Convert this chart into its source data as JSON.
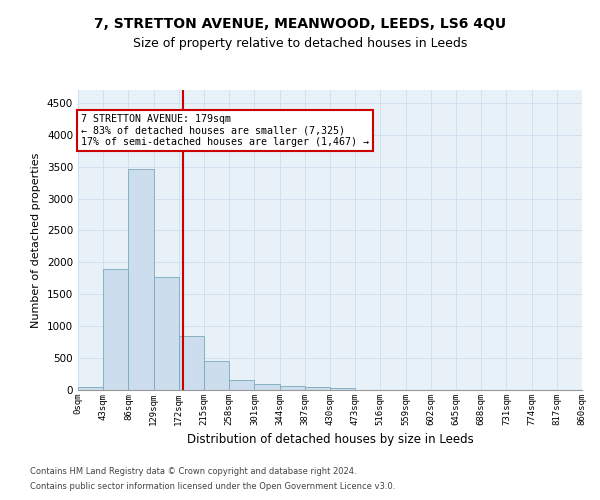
{
  "title": "7, STRETTON AVENUE, MEANWOOD, LEEDS, LS6 4QU",
  "subtitle": "Size of property relative to detached houses in Leeds",
  "xlabel": "Distribution of detached houses by size in Leeds",
  "ylabel": "Number of detached properties",
  "bin_edges": [
    0,
    43,
    86,
    129,
    172,
    215,
    258,
    301,
    344,
    387,
    430,
    473,
    516,
    559,
    602,
    645,
    688,
    731,
    774,
    817,
    860
  ],
  "bar_heights": [
    50,
    1900,
    3470,
    1770,
    850,
    450,
    160,
    100,
    65,
    50,
    30,
    0,
    0,
    0,
    0,
    0,
    0,
    0,
    0,
    0
  ],
  "bar_color": "#ccdded",
  "bar_edge_color": "#7aaabb",
  "red_line_x": 179,
  "ylim": [
    0,
    4700
  ],
  "yticks": [
    0,
    500,
    1000,
    1500,
    2000,
    2500,
    3000,
    3500,
    4000,
    4500
  ],
  "annotation_title": "7 STRETTON AVENUE: 179sqm",
  "annotation_line1": "← 83% of detached houses are smaller (7,325)",
  "annotation_line2": "17% of semi-detached houses are larger (1,467) →",
  "annotation_box_color": "#ffffff",
  "annotation_box_edge_color": "#cc0000",
  "footnote1": "Contains HM Land Registry data © Crown copyright and database right 2024.",
  "footnote2": "Contains public sector information licensed under the Open Government Licence v3.0.",
  "title_fontsize": 10,
  "subtitle_fontsize": 9,
  "grid_color": "#d0e0ee",
  "background_color": "#e8f0f8"
}
